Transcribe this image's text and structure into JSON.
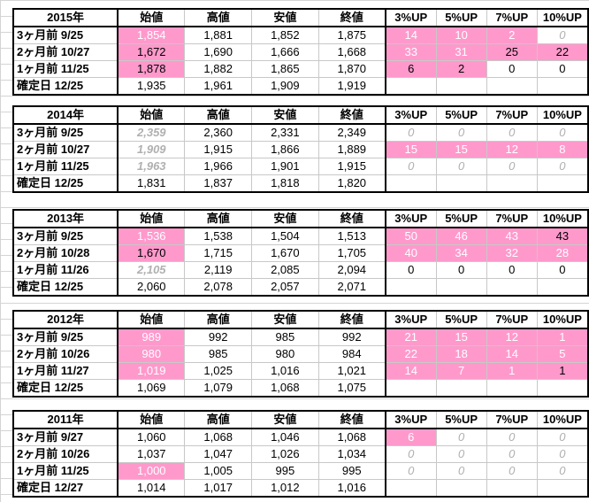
{
  "headers": [
    "始値",
    "高値",
    "安値",
    "終値",
    "3%UP",
    "5%UP",
    "7%UP",
    "10%UP"
  ],
  "blocks": [
    {
      "year": "2015年",
      "rows": [
        {
          "label": "3ヶ月前  9/25",
          "v": [
            "1,854",
            "1,881",
            "1,852",
            "1,875",
            "14",
            "10",
            "2",
            "0"
          ]
        },
        {
          "label": "2ヶ月前  10/27",
          "v": [
            "1,672",
            "1,690",
            "1,666",
            "1,668",
            "33",
            "31",
            "25",
            "22"
          ]
        },
        {
          "label": "1ヶ月前  11/25",
          "v": [
            "1,878",
            "1,882",
            "1,865",
            "1,870",
            "6",
            "2",
            "0",
            "0"
          ]
        },
        {
          "label": "確定日  12/25",
          "v": [
            "1,935",
            "1,961",
            "1,909",
            "1,919",
            "",
            "",
            "",
            ""
          ]
        }
      ]
    },
    {
      "year": "2014年",
      "rows": [
        {
          "label": "3ヶ月前  9/25",
          "v": [
            "2,359",
            "2,360",
            "2,331",
            "2,349",
            "0",
            "0",
            "0",
            "0"
          ]
        },
        {
          "label": "2ヶ月前  10/27",
          "v": [
            "1,909",
            "1,915",
            "1,866",
            "1,889",
            "15",
            "15",
            "12",
            "8"
          ]
        },
        {
          "label": "1ヶ月前  11/25",
          "v": [
            "1,963",
            "1,966",
            "1,901",
            "1,915",
            "0",
            "0",
            "0",
            "0"
          ]
        },
        {
          "label": "確定日  12/25",
          "v": [
            "1,831",
            "1,837",
            "1,818",
            "1,820",
            "",
            "",
            "",
            ""
          ]
        }
      ]
    },
    {
      "year": "2013年",
      "rows": [
        {
          "label": "3ヶ月前  9/25",
          "v": [
            "1,536",
            "1,538",
            "1,504",
            "1,513",
            "50",
            "46",
            "43",
            "43"
          ]
        },
        {
          "label": "2ヶ月前  10/28",
          "v": [
            "1,670",
            "1,715",
            "1,670",
            "1,705",
            "40",
            "34",
            "32",
            "28"
          ]
        },
        {
          "label": "1ヶ月前  11/26",
          "v": [
            "2,105",
            "2,119",
            "2,085",
            "2,094",
            "0",
            "0",
            "0",
            "0"
          ]
        },
        {
          "label": "確定日  12/25",
          "v": [
            "2,060",
            "2,078",
            "2,057",
            "2,071",
            "",
            "",
            "",
            ""
          ]
        }
      ]
    },
    {
      "year": "2012年",
      "rows": [
        {
          "label": "3ヶ月前  9/25",
          "v": [
            "989",
            "992",
            "985",
            "992",
            "21",
            "15",
            "12",
            "1"
          ]
        },
        {
          "label": "2ヶ月前  10/26",
          "v": [
            "980",
            "985",
            "980",
            "984",
            "22",
            "18",
            "14",
            "5"
          ]
        },
        {
          "label": "1ヶ月前  11/27",
          "v": [
            "1,019",
            "1,025",
            "1,016",
            "1,021",
            "14",
            "7",
            "1",
            "1"
          ]
        },
        {
          "label": "確定日  12/25",
          "v": [
            "1,069",
            "1,079",
            "1,068",
            "1,075",
            "",
            "",
            "",
            ""
          ]
        }
      ]
    },
    {
      "year": "2011年",
      "rows": [
        {
          "label": "3ヶ月前  9/27",
          "v": [
            "1,060",
            "1,068",
            "1,046",
            "1,068",
            "6",
            "0",
            "0",
            "0"
          ]
        },
        {
          "label": "2ヶ月前  10/26",
          "v": [
            "1,037",
            "1,047",
            "1,026",
            "1,034",
            "0",
            "0",
            "0",
            "0"
          ]
        },
        {
          "label": "1ヶ月前  11/25",
          "v": [
            "1,000",
            "1,005",
            "995",
            "995",
            "0",
            "0",
            "0",
            "0"
          ]
        },
        {
          "label": "確定日  12/27",
          "v": [
            "1,014",
            "1,017",
            "1,012",
            "1,016",
            "",
            "",
            "",
            ""
          ]
        }
      ]
    }
  ],
  "styles": {
    "0": {
      "0": {
        "0": "pink",
        "4": "pink",
        "5": "pink",
        "6": "pink",
        "7": "gray0"
      },
      "1": {
        "0": "pinkdark",
        "4": "pink",
        "5": "pink",
        "6": "pinkdark",
        "7": "pinkdark"
      },
      "2": {
        "0": "pinkdark",
        "4": "pinkdark",
        "5": "pinkdark"
      }
    },
    "1": {
      "0": {
        "0": "gray",
        "4": "gray0",
        "5": "gray0",
        "6": "gray0",
        "7": "gray0"
      },
      "1": {
        "0": "gray",
        "4": "pink",
        "5": "pink",
        "6": "pink",
        "7": "pink"
      },
      "2": {
        "0": "gray",
        "4": "gray0",
        "5": "gray0",
        "6": "gray0",
        "7": "gray0"
      }
    },
    "2": {
      "0": {
        "0": "pink",
        "4": "pink",
        "5": "pink",
        "6": "pink",
        "7": "pinkdark"
      },
      "1": {
        "0": "pinkdark",
        "4": "pink",
        "5": "pink",
        "6": "pink",
        "7": "pink"
      },
      "2": {
        "0": "gray"
      }
    },
    "3": {
      "0": {
        "0": "pink",
        "4": "pink",
        "5": "pink",
        "6": "pink",
        "7": "pink"
      },
      "1": {
        "0": "pink",
        "4": "pink",
        "5": "pink",
        "6": "pink",
        "7": "pink"
      },
      "2": {
        "0": "pink",
        "4": "pink",
        "5": "pink",
        "6": "pink",
        "7": "pinkdark"
      }
    },
    "4": {
      "0": {
        "4": "pink",
        "5": "gray0",
        "6": "gray0",
        "7": "gray0"
      },
      "1": {
        "4": "gray0",
        "5": "gray0",
        "6": "gray0",
        "7": "gray0"
      },
      "2": {
        "0": "pink",
        "4": "gray0",
        "5": "gray0",
        "6": "gray0",
        "7": "gray0"
      }
    }
  }
}
